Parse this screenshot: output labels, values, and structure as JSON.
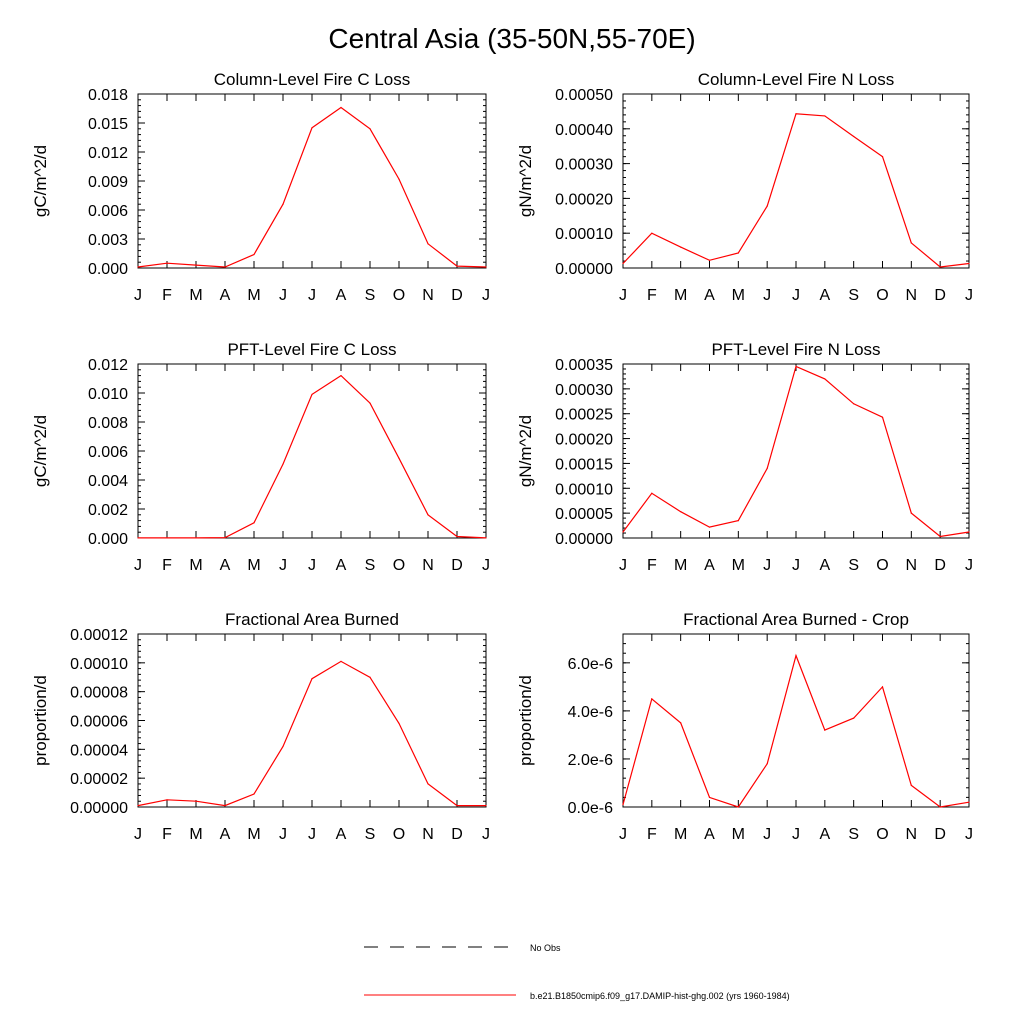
{
  "figure": {
    "title": "Central Asia (35-50N,55-70E)",
    "legend": {
      "obs_label": "No Obs",
      "model_label": "b.e21.B1850cmip6.f09_g17.DAMIP-hist-ghg.002 (yrs 1960-1984)"
    },
    "colors": {
      "model": "#ff0000",
      "axes": "#000000"
    }
  },
  "chart_data": [
    {
      "type": "line",
      "title": "Column-Level Fire C Loss",
      "ylabel": "gC/m^2/d",
      "x": [
        "J",
        "F",
        "M",
        "A",
        "M",
        "J",
        "J",
        "A",
        "S",
        "O",
        "N",
        "D",
        "J"
      ],
      "ylim": [
        0,
        0.018
      ],
      "yticks": [
        "0.000",
        "0.003",
        "0.006",
        "0.009",
        "0.012",
        "0.015",
        "0.018"
      ],
      "series": [
        {
          "values": [
            0.0001,
            0.0005,
            0.0003,
            0.0001,
            0.0014,
            0.0066,
            0.0145,
            0.0166,
            0.0144,
            0.0092,
            0.0025,
            0.0002,
            0.0001
          ]
        }
      ]
    },
    {
      "type": "line",
      "title": "Column-Level Fire N Loss",
      "ylabel": "gN/m^2/d",
      "x": [
        "J",
        "F",
        "M",
        "A",
        "M",
        "J",
        "J",
        "A",
        "S",
        "O",
        "N",
        "D",
        "J"
      ],
      "ylim": [
        0,
        0.0005
      ],
      "yticks": [
        "0.00000",
        "0.00010",
        "0.00020",
        "0.00030",
        "0.00040",
        "0.00050"
      ],
      "series": [
        {
          "values": [
            1.3e-05,
            0.0001,
            6e-05,
            2.2e-05,
            4.3e-05,
            0.000178,
            0.000443,
            0.000437,
            0.000378,
            0.00032,
            7.2e-05,
            3e-06,
            1.3e-05
          ]
        }
      ]
    },
    {
      "type": "line",
      "title": "PFT-Level Fire C Loss",
      "ylabel": "gC/m^2/d",
      "x": [
        "J",
        "F",
        "M",
        "A",
        "M",
        "J",
        "J",
        "A",
        "S",
        "O",
        "N",
        "D",
        "J"
      ],
      "ylim": [
        0,
        0.012
      ],
      "yticks": [
        "0.000",
        "0.002",
        "0.004",
        "0.006",
        "0.008",
        "0.010",
        "0.012"
      ],
      "series": [
        {
          "values": [
            1e-05,
            1e-05,
            1e-05,
            3e-05,
            0.00105,
            0.0051,
            0.0099,
            0.0112,
            0.0093,
            0.0055,
            0.0016,
            0.0001,
            1e-05
          ]
        }
      ]
    },
    {
      "type": "line",
      "title": "PFT-Level Fire N Loss",
      "ylabel": "gN/m^2/d",
      "x": [
        "J",
        "F",
        "M",
        "A",
        "M",
        "J",
        "J",
        "A",
        "S",
        "O",
        "N",
        "D",
        "J"
      ],
      "ylim": [
        0,
        0.00035
      ],
      "yticks": [
        "0.00000",
        "0.00005",
        "0.00010",
        "0.00015",
        "0.00020",
        "0.00025",
        "0.00030",
        "0.00035"
      ],
      "series": [
        {
          "values": [
            1.2e-05,
            9e-05,
            5.3e-05,
            2.2e-05,
            3.5e-05,
            0.00014,
            0.000345,
            0.00032,
            0.00027,
            0.000243,
            5e-05,
            3e-06,
            1.2e-05
          ]
        }
      ]
    },
    {
      "type": "line",
      "title": "Fractional Area Burned",
      "ylabel": "proportion/d",
      "x": [
        "J",
        "F",
        "M",
        "A",
        "M",
        "J",
        "J",
        "A",
        "S",
        "O",
        "N",
        "D",
        "J"
      ],
      "ylim": [
        0,
        0.00012
      ],
      "yticks": [
        "0.00000",
        "0.00002",
        "0.00004",
        "0.00006",
        "0.00008",
        "0.00010",
        "0.00012"
      ],
      "series": [
        {
          "values": [
            1e-06,
            5e-06,
            4e-06,
            1e-06,
            9e-06,
            4.2e-05,
            8.9e-05,
            0.000101,
            9e-05,
            5.8e-05,
            1.6e-05,
            1e-06,
            1e-06
          ]
        }
      ]
    },
    {
      "type": "line",
      "title": "Fractional Area Burned - Crop",
      "ylabel": "proportion/d",
      "x": [
        "J",
        "F",
        "M",
        "A",
        "M",
        "J",
        "J",
        "A",
        "S",
        "O",
        "N",
        "D",
        "J"
      ],
      "ylim": [
        0,
        7.2e-06
      ],
      "yticks": [
        "0.0e-6",
        "2.0e-6",
        "4.0e-6",
        "6.0e-6"
      ],
      "ytick_values": [
        0,
        2e-06,
        4e-06,
        6e-06
      ],
      "series": [
        {
          "values": [
            1e-07,
            4.5e-06,
            3.5e-06,
            4e-07,
            0.0,
            1.8e-06,
            6.3e-06,
            3.2e-06,
            3.7e-06,
            5e-06,
            9e-07,
            0.0,
            2e-07
          ]
        }
      ]
    }
  ]
}
